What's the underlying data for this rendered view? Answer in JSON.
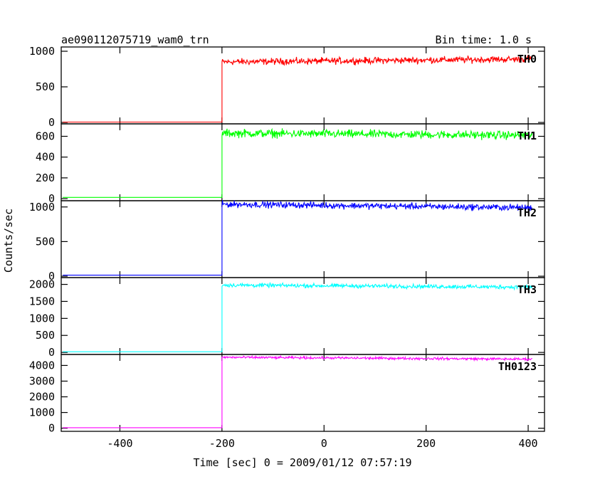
{
  "header": {
    "title": "ae090112075719_wam0_trn",
    "bin_time": "Bin time: 1.0 s"
  },
  "chart_data": {
    "type": "line",
    "xlabel": "Time [sec] 0 = 2009/01/12 07:57:19",
    "ylabel": "Counts/sec",
    "xlim": [
      -515,
      432
    ],
    "x_ticks": [
      -400,
      -200,
      0,
      200,
      400
    ],
    "trigger_time": -200,
    "x_end": 408,
    "panels": [
      {
        "name": "TH0",
        "color": "#ff0000",
        "ylim": [
          -20,
          1060
        ],
        "y_ticks": [
          0,
          500,
          1000
        ],
        "pre_level": 5,
        "post_start": 850,
        "post_end": 890,
        "noise": 35
      },
      {
        "name": "TH1",
        "color": "#00ff00",
        "ylim": [
          -20,
          720
        ],
        "y_ticks": [
          0,
          200,
          400,
          600
        ],
        "pre_level": 12,
        "post_start": 630,
        "post_end": 610,
        "noise": 30
      },
      {
        "name": "TH2",
        "color": "#0000ff",
        "ylim": [
          -20,
          1090
        ],
        "y_ticks": [
          0,
          500,
          1000
        ],
        "pre_level": 15,
        "post_start": 1040,
        "post_end": 990,
        "noise": 35
      },
      {
        "name": "TH3",
        "color": "#00ffff",
        "ylim": [
          -60,
          2200
        ],
        "y_ticks": [
          0,
          500,
          1000,
          1500,
          2000
        ],
        "pre_level": 20,
        "post_start": 1980,
        "post_end": 1920,
        "noise": 45
      },
      {
        "name": "TH0123",
        "color": "#ff00ff",
        "ylim": [
          -200,
          4700
        ],
        "y_ticks": [
          0,
          1000,
          2000,
          3000,
          4000
        ],
        "pre_level": 30,
        "post_start": 4520,
        "post_end": 4400,
        "noise": 60
      }
    ]
  }
}
